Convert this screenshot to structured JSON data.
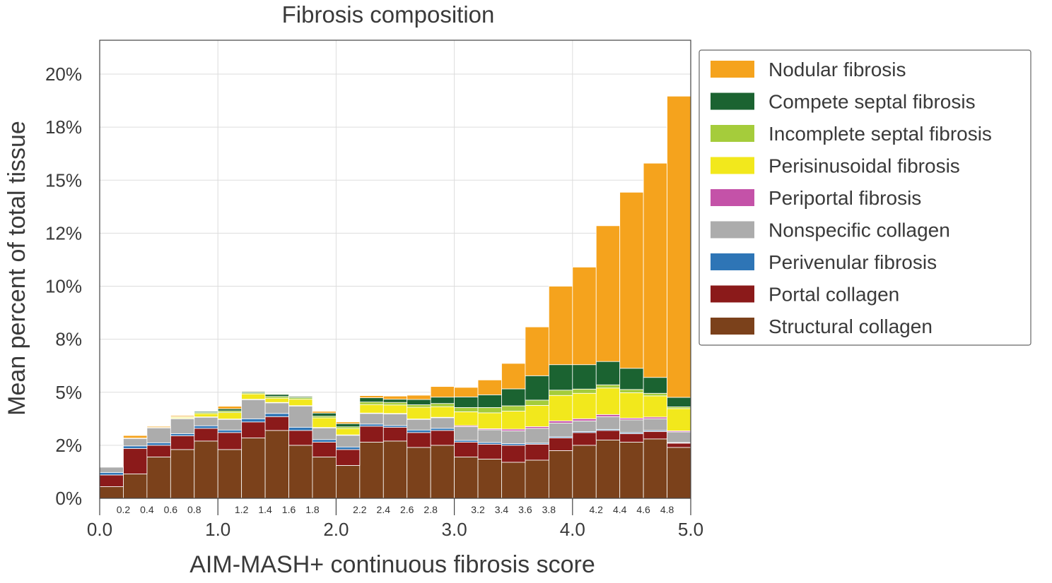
{
  "chart_data": {
    "type": "bar",
    "stacked": true,
    "title": "Fibrosis composition",
    "xlabel": "AIM-MASH+ continuous fibrosis score",
    "ylabel": "Mean percent of total tissue",
    "xlim": [
      0.0,
      5.0
    ],
    "ylim": [
      0,
      21.5
    ],
    "grid": true,
    "legend_position": "right",
    "bin_width": 0.2,
    "x_major_ticks": [
      "0.0",
      "1.0",
      "2.0",
      "3.0",
      "4.0",
      "5.0"
    ],
    "x_minor_ticks": [
      "0.2",
      "0.4",
      "0.6",
      "0.8",
      "1.2",
      "1.4",
      "1.6",
      "1.8",
      "2.2",
      "2.4",
      "2.6",
      "2.8",
      "3.2",
      "3.4",
      "3.6",
      "3.8",
      "4.2",
      "4.4",
      "4.6",
      "4.8"
    ],
    "y_ticks": [
      "0%",
      "2%",
      "5%",
      "8%",
      "10%",
      "12%",
      "15%",
      "18%",
      "20%"
    ],
    "y_tick_values": [
      0,
      2.5,
      5,
      7.5,
      10,
      12.5,
      15,
      17.5,
      20
    ],
    "categories": [
      "0.0",
      "0.2",
      "0.4",
      "0.6",
      "0.8",
      "1.0",
      "1.2",
      "1.4",
      "1.6",
      "1.8",
      "2.0",
      "2.2",
      "2.4",
      "2.6",
      "2.8",
      "3.0",
      "3.2",
      "3.4",
      "3.6",
      "3.8",
      "4.0",
      "4.2",
      "4.4",
      "4.6",
      "4.8"
    ],
    "series": [
      {
        "name": "Structural collagen",
        "color": "#7b411b",
        "values": [
          0.55,
          1.15,
          1.95,
          2.3,
          2.7,
          2.3,
          2.85,
          3.2,
          2.5,
          1.95,
          1.55,
          2.65,
          2.7,
          2.4,
          2.5,
          1.95,
          1.85,
          1.7,
          1.8,
          2.25,
          2.5,
          2.75,
          2.65,
          2.8,
          2.4
        ]
      },
      {
        "name": "Portal collagen",
        "color": "#8b1a1a",
        "values": [
          0.55,
          1.2,
          0.55,
          0.65,
          0.6,
          0.8,
          0.75,
          0.65,
          0.7,
          0.7,
          0.75,
          0.75,
          0.65,
          0.7,
          0.7,
          0.7,
          0.7,
          0.8,
          0.75,
          0.6,
          0.6,
          0.45,
          0.4,
          0.35,
          0.2
        ]
      },
      {
        "name": "Perivenular fibrosis",
        "color": "#2e75b6",
        "values": [
          0.12,
          0.12,
          0.12,
          0.1,
          0.12,
          0.12,
          0.15,
          0.15,
          0.15,
          0.12,
          0.12,
          0.1,
          0.08,
          0.12,
          0.1,
          0.08,
          0.08,
          0.08,
          0.05,
          0.05,
          0.05,
          0.05,
          0.05,
          0.05,
          0.03
        ]
      },
      {
        "name": "Nonspecific collagen",
        "color": "#acacac",
        "values": [
          0.25,
          0.35,
          0.7,
          0.7,
          0.4,
          0.5,
          0.9,
          0.5,
          1.0,
          0.55,
          0.55,
          0.5,
          0.55,
          0.5,
          0.5,
          0.65,
          0.6,
          0.6,
          0.7,
          0.65,
          0.5,
          0.6,
          0.6,
          0.55,
          0.5
        ]
      },
      {
        "name": "Periportal fibrosis",
        "color": "#c452a8",
        "values": [
          0.02,
          0.02,
          0.02,
          0.02,
          0.02,
          0.02,
          0.02,
          0.02,
          0.02,
          0.02,
          0.02,
          0.02,
          0.02,
          0.02,
          0.02,
          0.05,
          0.05,
          0.08,
          0.08,
          0.1,
          0.1,
          0.1,
          0.08,
          0.08,
          0.05
        ]
      },
      {
        "name": "Perisinusoidal fibrosis",
        "color": "#f2e81c",
        "values": [
          0.0,
          0.0,
          0.0,
          0.05,
          0.15,
          0.3,
          0.25,
          0.2,
          0.3,
          0.45,
          0.3,
          0.4,
          0.4,
          0.55,
          0.5,
          0.65,
          0.75,
          0.85,
          1.0,
          1.2,
          1.2,
          1.25,
          1.2,
          1.0,
          1.05
        ]
      },
      {
        "name": "Incomplete septal fibrosis",
        "color": "#a5cc3b",
        "values": [
          0.0,
          0.0,
          0.0,
          0.03,
          0.05,
          0.08,
          0.05,
          0.08,
          0.08,
          0.08,
          0.08,
          0.12,
          0.12,
          0.12,
          0.15,
          0.2,
          0.25,
          0.25,
          0.25,
          0.25,
          0.2,
          0.15,
          0.15,
          0.12,
          0.08
        ]
      },
      {
        "name": "Compete septal fibrosis",
        "color": "#1b6331",
        "values": [
          0.0,
          0.0,
          0.0,
          0.0,
          0.05,
          0.1,
          0.05,
          0.1,
          0.05,
          0.15,
          0.15,
          0.2,
          0.15,
          0.25,
          0.3,
          0.5,
          0.6,
          0.8,
          1.15,
          1.2,
          1.15,
          1.1,
          1.0,
          0.75,
          0.45
        ]
      },
      {
        "name": "Nodular fibrosis",
        "color": "#f5a31d",
        "values": [
          0.0,
          0.12,
          0.05,
          0.05,
          0.0,
          0.12,
          0.03,
          0.03,
          0.03,
          0.08,
          0.08,
          0.1,
          0.15,
          0.2,
          0.5,
          0.45,
          0.7,
          1.2,
          2.3,
          3.7,
          4.6,
          6.4,
          8.3,
          10.1,
          14.2
        ]
      }
    ]
  }
}
